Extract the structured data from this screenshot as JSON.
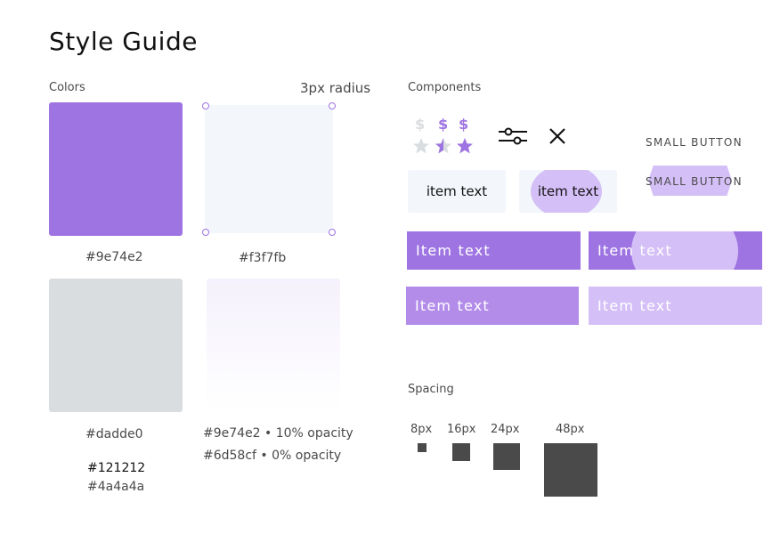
{
  "title": "Style Guide",
  "colors": {
    "label": "Colors",
    "radius_note": "3px radius",
    "swatches": [
      {
        "hex": "#9e74e2",
        "label": "#9e74e2"
      },
      {
        "hex": "#f3f7fb",
        "label": "#f3f7fb"
      },
      {
        "hex": "#dadde0",
        "label": "#dadde0"
      }
    ],
    "gradient_labels": [
      "#9e74e2 • 10% opacity",
      "#6d58cf • 0% opacity"
    ],
    "text_colors": [
      "#121212",
      "#4a4a4a"
    ]
  },
  "components": {
    "label": "Components",
    "dollar": "$",
    "rating_icons": [
      "dollar-icon",
      "star-icon"
    ],
    "icons": [
      "sliders-icon",
      "close-icon"
    ],
    "small_button": "SMALL BUTTON",
    "small_button_hover": "SMALL BUTTON",
    "item_text": "item text",
    "item_text_hover": "item text",
    "big_item_texts": [
      "Item text",
      "Item text",
      "Item text",
      "Item text"
    ]
  },
  "spacing": {
    "label": "Spacing",
    "sizes": [
      "8px",
      "16px",
      "24px",
      "48px"
    ]
  }
}
